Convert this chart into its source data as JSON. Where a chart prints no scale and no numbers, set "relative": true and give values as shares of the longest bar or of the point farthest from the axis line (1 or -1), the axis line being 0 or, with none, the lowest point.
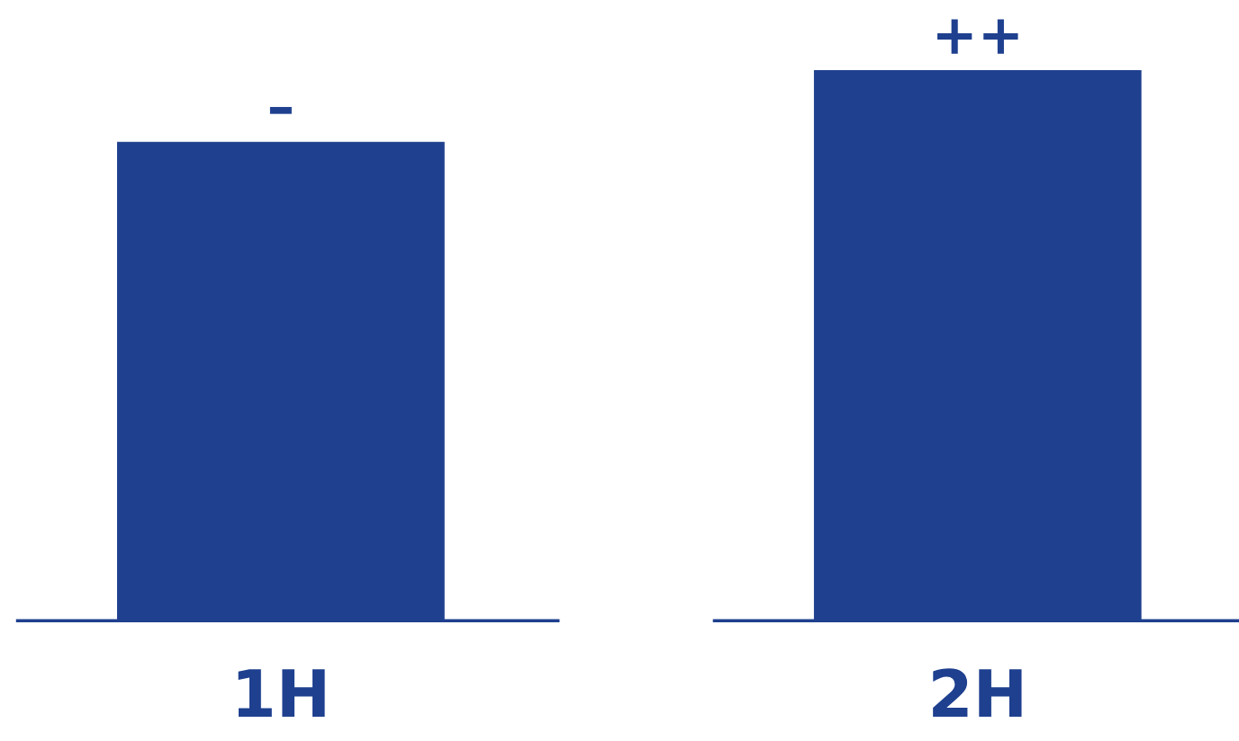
{
  "chart_data": {
    "type": "bar",
    "relative": true,
    "categories": [
      "1H",
      "2H"
    ],
    "values": [
      0.87,
      1
    ],
    "annotations": [
      {
        "text": "–",
        "x": "1H",
        "y": 0.87
      },
      {
        "text": "++",
        "x": "2H",
        "y": 1
      }
    ],
    "color": "#1f408f"
  }
}
